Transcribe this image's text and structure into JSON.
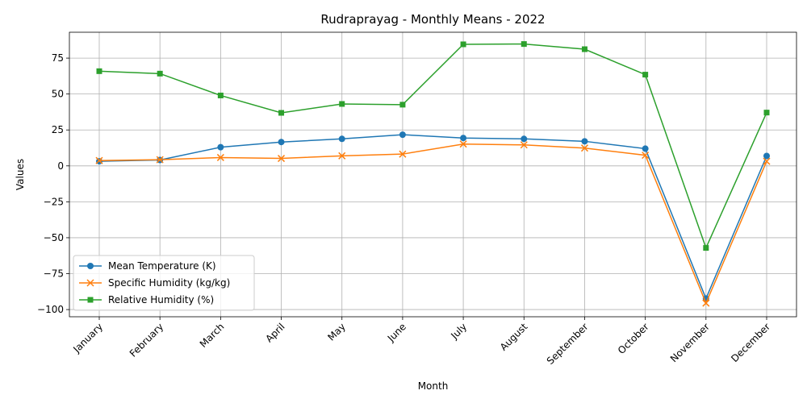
{
  "chart_data": {
    "type": "line",
    "title": "Rudraprayag - Monthly Means - 2022",
    "xlabel": "Month",
    "ylabel": "Values",
    "categories": [
      "January",
      "February",
      "March",
      "April",
      "May",
      "June",
      "July",
      "August",
      "September",
      "October",
      "November",
      "December"
    ],
    "ylim": [
      -105,
      93
    ],
    "yticks": [
      -100,
      -75,
      -50,
      -25,
      0,
      25,
      50,
      75
    ],
    "grid": true,
    "legend_position": "lower-left",
    "series": [
      {
        "name": "Mean Temperature (K)",
        "color": "#1f77b4",
        "marker": "circle",
        "values": [
          3.2,
          4.1,
          13.0,
          16.6,
          18.8,
          21.7,
          19.4,
          18.8,
          17.1,
          12.0,
          -92.3,
          6.9
        ]
      },
      {
        "name": "Specific Humidity (kg/kg)",
        "color": "#ff7f0e",
        "marker": "x",
        "values": [
          3.7,
          4.3,
          5.8,
          5.2,
          7.0,
          8.2,
          15.2,
          14.6,
          12.4,
          7.4,
          -95.5,
          3.2
        ]
      },
      {
        "name": "Relative Humidity (%)",
        "color": "#2ca02c",
        "marker": "square",
        "values": [
          65.9,
          64.2,
          49.0,
          36.9,
          43.1,
          42.6,
          84.6,
          84.8,
          81.2,
          63.5,
          -57.1,
          37.1
        ]
      }
    ]
  }
}
